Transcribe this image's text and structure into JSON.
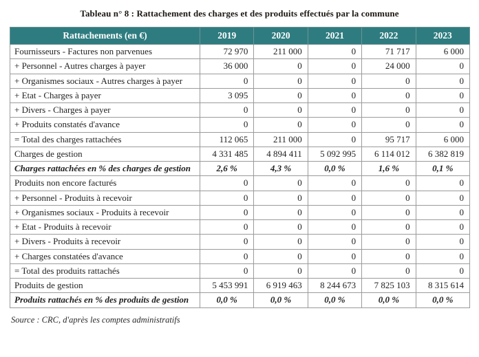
{
  "title": "Tableau n° 8 : Rattachement des charges et des produits effectués par la commune",
  "source": "Source : CRC, d'après les comptes administratifs",
  "colors": {
    "header_bg": "#2F7C80",
    "header_text": "#FFFFFF",
    "border": "#9A9A9A",
    "title_text": "#1C1713"
  },
  "table": {
    "columns": [
      "Rattachements (en €)",
      "2019",
      "2020",
      "2021",
      "2022",
      "2023"
    ],
    "rows": [
      {
        "label": "Fournisseurs - Factures non parvenues",
        "values": [
          "72 970",
          "211 000",
          "0",
          "71 717",
          "6 000"
        ],
        "emphasis": "normal"
      },
      {
        "label": "+ Personnel - Autres charges à payer",
        "values": [
          "36 000",
          "0",
          "0",
          "24 000",
          "0"
        ],
        "emphasis": "normal"
      },
      {
        "label": "+ Organismes sociaux - Autres charges à payer",
        "values": [
          "0",
          "0",
          "0",
          "0",
          "0"
        ],
        "emphasis": "normal"
      },
      {
        "label": "+ Etat - Charges à payer",
        "values": [
          "3 095",
          "0",
          "0",
          "0",
          "0"
        ],
        "emphasis": "normal"
      },
      {
        "label": "+ Divers - Charges à payer",
        "values": [
          "0",
          "0",
          "0",
          "0",
          "0"
        ],
        "emphasis": "normal"
      },
      {
        "label": "+ Produits constatés d'avance",
        "values": [
          "0",
          "0",
          "0",
          "0",
          "0"
        ],
        "emphasis": "normal"
      },
      {
        "label": "= Total des charges rattachées",
        "values": [
          "112 065",
          "211 000",
          "0",
          "95 717",
          "6 000"
        ],
        "emphasis": "normal"
      },
      {
        "label": "Charges de gestion",
        "values": [
          "4 331 485",
          "4 894 411",
          "5 092 995",
          "6 114 012",
          "6 382 819"
        ],
        "emphasis": "normal"
      },
      {
        "label": "Charges rattachées en % des charges de gestion",
        "values": [
          "2,6 %",
          "4,3 %",
          "0,0 %",
          "1,6 %",
          "0,1 %"
        ],
        "emphasis": "percent"
      },
      {
        "label": "Produits non encore facturés",
        "values": [
          "0",
          "0",
          "0",
          "0",
          "0"
        ],
        "emphasis": "normal"
      },
      {
        "label": "+ Personnel - Produits à recevoir",
        "values": [
          "0",
          "0",
          "0",
          "0",
          "0"
        ],
        "emphasis": "normal"
      },
      {
        "label": "+ Organismes sociaux - Produits à recevoir",
        "values": [
          "0",
          "0",
          "0",
          "0",
          "0"
        ],
        "emphasis": "normal"
      },
      {
        "label": "+ Etat - Produits à recevoir",
        "values": [
          "0",
          "0",
          "0",
          "0",
          "0"
        ],
        "emphasis": "normal"
      },
      {
        "label": "+ Divers - Produits à recevoir",
        "values": [
          "0",
          "0",
          "0",
          "0",
          "0"
        ],
        "emphasis": "normal"
      },
      {
        "label": "+ Charges constatées d'avance",
        "values": [
          "0",
          "0",
          "0",
          "0",
          "0"
        ],
        "emphasis": "normal"
      },
      {
        "label": "= Total des produits rattachés",
        "values": [
          "0",
          "0",
          "0",
          "0",
          "0"
        ],
        "emphasis": "normal"
      },
      {
        "label": "Produits de gestion",
        "values": [
          "5 453 991",
          "6 919 463",
          "8 244 673",
          "7 825 103",
          "8 315 614"
        ],
        "emphasis": "normal"
      },
      {
        "label": "Produits rattachés en % des produits de gestion",
        "values": [
          "0,0 %",
          "0,0 %",
          "0,0 %",
          "0,0 %",
          "0,0 %"
        ],
        "emphasis": "percent"
      }
    ]
  }
}
